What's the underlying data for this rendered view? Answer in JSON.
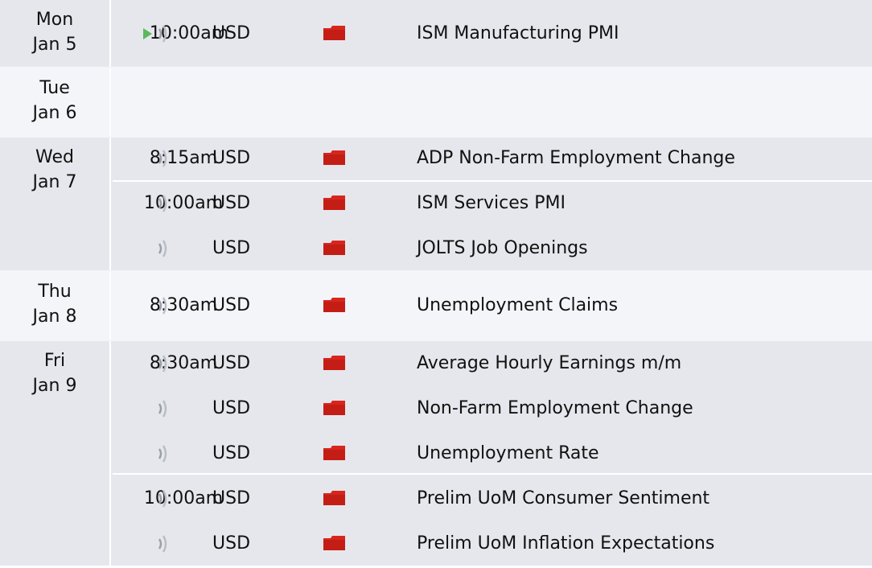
{
  "days": [
    {
      "weekday": "Mon",
      "date": "Jan 5"
    },
    {
      "weekday": "Tue",
      "date": "Jan 6"
    },
    {
      "weekday": "Wed",
      "date": "Jan 7"
    },
    {
      "weekday": "Thu",
      "date": "Jan 8"
    },
    {
      "weekday": "Fri",
      "date": "Jan 9"
    }
  ],
  "events": [
    {
      "time": "10:00am",
      "currency": "USD",
      "impact": "high",
      "name": "ISM Manufacturing PMI"
    },
    {
      "time": "8:15am",
      "currency": "USD",
      "impact": "high",
      "name": "ADP Non-Farm Employment Change"
    },
    {
      "time": "10:00am",
      "currency": "USD",
      "impact": "high",
      "name": "ISM Services PMI"
    },
    {
      "time": "",
      "currency": "USD",
      "impact": "high",
      "name": "JOLTS Job Openings"
    },
    {
      "time": "8:30am",
      "currency": "USD",
      "impact": "high",
      "name": "Unemployment Claims"
    },
    {
      "time": "8:30am",
      "currency": "USD",
      "impact": "high",
      "name": "Average Hourly Earnings m/m"
    },
    {
      "time": "",
      "currency": "USD",
      "impact": "high",
      "name": "Non-Farm Employment Change"
    },
    {
      "time": "",
      "currency": "USD",
      "impact": "high",
      "name": "Unemployment Rate"
    },
    {
      "time": "10:00am",
      "currency": "USD",
      "impact": "high",
      "name": "Prelim UoM Consumer Sentiment"
    },
    {
      "time": "",
      "currency": "USD",
      "impact": "high",
      "name": "Prelim UoM Inflation Expectations"
    }
  ],
  "icons": {
    "next_event": "play-icon",
    "speaker": "sound-icon",
    "impact": "high-impact-folder-icon"
  },
  "colors": {
    "impact_high": "#d7261e",
    "next_marker": "#5cb85c"
  }
}
